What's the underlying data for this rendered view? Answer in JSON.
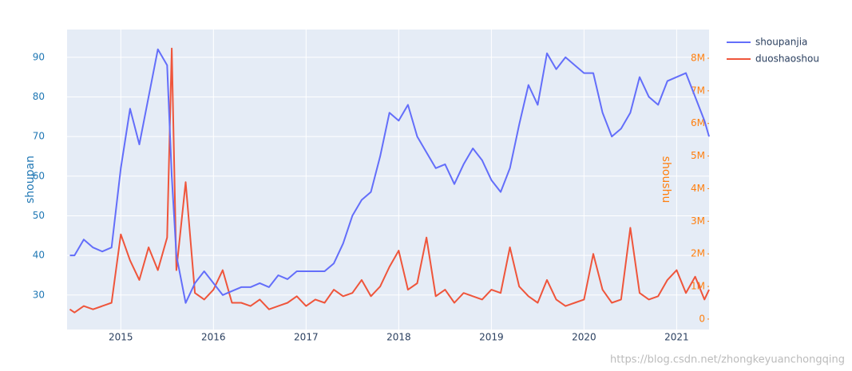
{
  "chart_data": {
    "type": "line",
    "x": [
      2014.45,
      2014.5,
      2014.6,
      2014.7,
      2014.8,
      2014.9,
      2015.0,
      2015.1,
      2015.2,
      2015.3,
      2015.4,
      2015.5,
      2015.55,
      2015.6,
      2015.7,
      2015.8,
      2015.9,
      2016.0,
      2016.1,
      2016.2,
      2016.3,
      2016.4,
      2016.5,
      2016.6,
      2016.7,
      2016.8,
      2016.9,
      2017.0,
      2017.1,
      2017.2,
      2017.3,
      2017.4,
      2017.5,
      2017.6,
      2017.7,
      2017.8,
      2017.9,
      2018.0,
      2018.1,
      2018.2,
      2018.3,
      2018.4,
      2018.5,
      2018.6,
      2018.7,
      2018.8,
      2018.9,
      2019.0,
      2019.1,
      2019.2,
      2019.3,
      2019.4,
      2019.5,
      2019.6,
      2019.7,
      2019.8,
      2019.9,
      2020.0,
      2020.1,
      2020.2,
      2020.3,
      2020.4,
      2020.5,
      2020.6,
      2020.7,
      2020.8,
      2020.9,
      2021.0,
      2021.1,
      2021.2,
      2021.3,
      2021.35
    ],
    "series": [
      {
        "name": "shoupanjia",
        "color": "#636efa",
        "values": [
          40,
          40,
          44,
          42,
          41,
          42,
          62,
          77,
          68,
          80,
          92,
          88,
          60,
          40,
          28,
          33,
          36,
          33,
          30,
          31,
          32,
          32,
          33,
          32,
          35,
          34,
          36,
          36,
          36,
          36,
          38,
          43,
          50,
          54,
          56,
          65,
          76,
          74,
          78,
          70,
          66,
          62,
          63,
          58,
          63,
          67,
          64,
          59,
          56,
          62,
          73,
          83,
          78,
          91,
          87,
          90,
          88,
          86,
          86,
          76,
          70,
          72,
          76,
          85,
          80,
          78,
          84,
          85,
          86,
          80,
          74,
          70
        ]
      },
      {
        "name": "duoshaoshou",
        "color": "#ef553b",
        "axis": "y2",
        "values": [
          300000,
          200000,
          400000,
          300000,
          400000,
          500000,
          2600000,
          1800000,
          1200000,
          2200000,
          1500000,
          2500000,
          8300000,
          1500000,
          4200000,
          800000,
          600000,
          900000,
          1500000,
          500000,
          500000,
          400000,
          600000,
          300000,
          400000,
          500000,
          700000,
          400000,
          600000,
          500000,
          900000,
          700000,
          800000,
          1200000,
          700000,
          1000000,
          1600000,
          2100000,
          900000,
          1100000,
          2500000,
          700000,
          900000,
          500000,
          800000,
          700000,
          600000,
          900000,
          800000,
          2200000,
          1000000,
          700000,
          500000,
          1200000,
          600000,
          400000,
          500000,
          600000,
          2000000,
          900000,
          500000,
          600000,
          2800000,
          800000,
          600000,
          700000,
          1200000,
          1500000,
          800000,
          1300000,
          600000,
          900000
        ]
      }
    ],
    "y_label": "shoupan",
    "y2_label": "shoushu",
    "xlim": [
      2014.42,
      2021.35
    ],
    "xticks": [
      2015,
      2016,
      2017,
      2018,
      2019,
      2020,
      2021
    ],
    "ylim": [
      21.3,
      97
    ],
    "yticks": [
      30,
      40,
      50,
      60,
      70,
      80,
      90
    ],
    "y2lim": [
      -320000,
      8880000
    ],
    "y2ticks": [
      0,
      {
        "value": 1000000,
        "label": "1M"
      },
      {
        "value": 2000000,
        "label": "2M"
      },
      {
        "value": 3000000,
        "label": "3M"
      },
      {
        "value": 4000000,
        "label": "4M"
      },
      {
        "value": 5000000,
        "label": "5M"
      },
      {
        "value": 6000000,
        "label": "6M"
      },
      {
        "value": 7000000,
        "label": "7M"
      },
      {
        "value": 8000000,
        "label": "8M"
      }
    ],
    "grid": true
  },
  "watermark": "https://blog.csdn.net/zhongkeyuanchongqing"
}
